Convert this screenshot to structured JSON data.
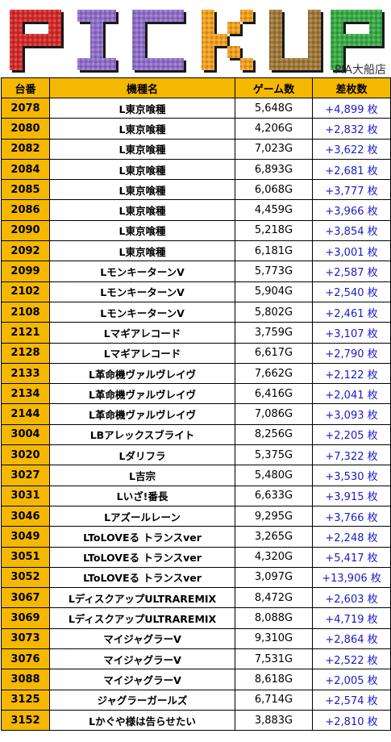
{
  "banner": {
    "title_letters": [
      "P",
      "I",
      "C",
      "K",
      "U",
      "P"
    ],
    "letter_colors": [
      "#d42a2a",
      "#8f6ec9",
      "#8f6ec9",
      "#f0a020",
      "#a07838",
      "#3aaa46"
    ],
    "store": "PIA大船店"
  },
  "table": {
    "headers": [
      "台番",
      "機種名",
      "ゲーム数",
      "差枚数"
    ],
    "rows": [
      {
        "num": "2078",
        "model": "L東京喰種",
        "games": "5,648G",
        "diff": "+4,899 枚"
      },
      {
        "num": "2080",
        "model": "L東京喰種",
        "games": "4,206G",
        "diff": "+2,832 枚"
      },
      {
        "num": "2082",
        "model": "L東京喰種",
        "games": "7,023G",
        "diff": "+3,622 枚"
      },
      {
        "num": "2084",
        "model": "L東京喰種",
        "games": "6,893G",
        "diff": "+2,681 枚"
      },
      {
        "num": "2085",
        "model": "L東京喰種",
        "games": "6,068G",
        "diff": "+3,777 枚"
      },
      {
        "num": "2086",
        "model": "L東京喰種",
        "games": "4,459G",
        "diff": "+3,966 枚"
      },
      {
        "num": "2090",
        "model": "L東京喰種",
        "games": "5,218G",
        "diff": "+3,854 枚"
      },
      {
        "num": "2092",
        "model": "L東京喰種",
        "games": "6,181G",
        "diff": "+3,001 枚"
      },
      {
        "num": "2099",
        "model": "LモンキーターンV",
        "games": "5,773G",
        "diff": "+2,587 枚"
      },
      {
        "num": "2102",
        "model": "LモンキーターンV",
        "games": "5,904G",
        "diff": "+2,540 枚"
      },
      {
        "num": "2108",
        "model": "LモンキーターンV",
        "games": "5,802G",
        "diff": "+2,461 枚"
      },
      {
        "num": "2121",
        "model": "Lマギアレコード",
        "games": "3,759G",
        "diff": "+3,107 枚"
      },
      {
        "num": "2128",
        "model": "Lマギアレコード",
        "games": "6,617G",
        "diff": "+2,790 枚"
      },
      {
        "num": "2133",
        "model": "L革命機ヴァルヴレイヴ",
        "games": "7,662G",
        "diff": "+2,122 枚"
      },
      {
        "num": "2134",
        "model": "L革命機ヴァルヴレイヴ",
        "games": "6,416G",
        "diff": "+2,041 枚"
      },
      {
        "num": "2144",
        "model": "L革命機ヴァルヴレイヴ",
        "games": "7,086G",
        "diff": "+3,093 枚"
      },
      {
        "num": "3004",
        "model": "LBアレックスブライト",
        "games": "8,256G",
        "diff": "+2,205 枚"
      },
      {
        "num": "3020",
        "model": "Lダリフラ",
        "games": "5,375G",
        "diff": "+7,322 枚"
      },
      {
        "num": "3027",
        "model": "L吉宗",
        "games": "5,480G",
        "diff": "+3,530 枚"
      },
      {
        "num": "3031",
        "model": "Lいざ!番長",
        "games": "6,633G",
        "diff": "+3,915 枚"
      },
      {
        "num": "3046",
        "model": "Lアズールレーン",
        "games": "9,295G",
        "diff": "+3,766 枚"
      },
      {
        "num": "3049",
        "model": "LToLOVEる トランスver",
        "games": "3,265G",
        "diff": "+2,248 枚"
      },
      {
        "num": "3051",
        "model": "LToLOVEる トランスver",
        "games": "4,320G",
        "diff": "+5,417 枚"
      },
      {
        "num": "3052",
        "model": "LToLOVEる トランスver",
        "games": "3,097G",
        "diff": "+13,906 枚"
      },
      {
        "num": "3067",
        "model": "LディスクアップULTRAREMIX",
        "games": "8,472G",
        "diff": "+2,603 枚"
      },
      {
        "num": "3069",
        "model": "LディスクアップULTRAREMIX",
        "games": "8,088G",
        "diff": "+4,719 枚"
      },
      {
        "num": "3073",
        "model": "マイジャグラーV",
        "games": "9,310G",
        "diff": "+2,864 枚"
      },
      {
        "num": "3076",
        "model": "マイジャグラーV",
        "games": "7,531G",
        "diff": "+2,522 枚"
      },
      {
        "num": "3088",
        "model": "マイジャグラーV",
        "games": "8,618G",
        "diff": "+2,005 枚"
      },
      {
        "num": "3125",
        "model": "ジャグラーガールズ",
        "games": "6,714G",
        "diff": "+2,574 枚"
      },
      {
        "num": "3152",
        "model": "Lかぐや様は告らせたい",
        "games": "3,883G",
        "diff": "+2,810 枚"
      }
    ]
  }
}
